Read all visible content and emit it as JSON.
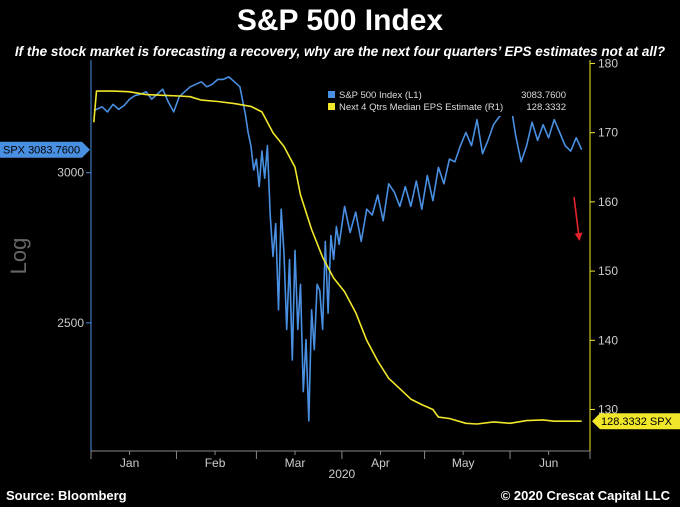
{
  "header": {
    "title": "S&P 500 Index",
    "subtitle": "If the stock market is forecasting a recovery, why are the next four quarters’ EPS estimates not at all?"
  },
  "footer": {
    "source": "Source: Bloomberg",
    "copyright": "© 2020 Crescat Capital LLC"
  },
  "colors": {
    "background": "#000000",
    "spx": "#4a90e2",
    "eps": "#f0e62a",
    "arrow": "#e3242b",
    "axis": "#888888"
  },
  "chart_data": {
    "type": "line",
    "xlabel": "2020",
    "x_ticks": [
      "Jan",
      "Feb",
      "Mar",
      "Apr",
      "May",
      "Jun"
    ],
    "x_tick_days": [
      14,
      45,
      74,
      105,
      135,
      166
    ],
    "x_range_days": [
      0,
      181
    ],
    "left_axis": {
      "label": "Log",
      "scale": "log",
      "ticks": [
        2500,
        3000
      ],
      "range": [
        2140,
        3440
      ],
      "last_value_badge": "SPX 3083.7600"
    },
    "right_axis": {
      "ticks": [
        130,
        140,
        150,
        160,
        170,
        180
      ],
      "range": [
        124,
        180.5
      ],
      "last_value_badge": "128.3332 SPX"
    },
    "legend": {
      "placement": "top-right",
      "entries": [
        {
          "label": "S&P 500 Index (L1)",
          "value": "3083.7600"
        },
        {
          "label": "Next 4 Qtrs Median EPS Estimate (R1)",
          "value": "128.3332"
        }
      ]
    },
    "series": [
      {
        "name": "S&P 500 Index (L1)",
        "axis": "left",
        "x_days": [
          1,
          4,
          6,
          8,
          10,
          12,
          14,
          16,
          18,
          20,
          22,
          24,
          26,
          28,
          30,
          32,
          34,
          36,
          38,
          40,
          42,
          44,
          46,
          48,
          50,
          52,
          54,
          56,
          57,
          58,
          59,
          60,
          61,
          62,
          63,
          64,
          65,
          66,
          67,
          68,
          69,
          70,
          71,
          72,
          73,
          74,
          75,
          76,
          77,
          78,
          79,
          80,
          81,
          82,
          83,
          84,
          85,
          86,
          87,
          88,
          89,
          90,
          92,
          94,
          96,
          98,
          100,
          102,
          104,
          106,
          108,
          110,
          112,
          114,
          116,
          118,
          120,
          122,
          124,
          126,
          128,
          130,
          132,
          134,
          136,
          138,
          140,
          142,
          144,
          146,
          148,
          150,
          152,
          154,
          156,
          158,
          160,
          162,
          164,
          166,
          168,
          170,
          172,
          174,
          176,
          178
        ],
        "y": [
          3235,
          3250,
          3230,
          3260,
          3240,
          3255,
          3280,
          3295,
          3300,
          3310,
          3280,
          3300,
          3320,
          3270,
          3230,
          3290,
          3310,
          3330,
          3340,
          3350,
          3330,
          3340,
          3360,
          3360,
          3370,
          3350,
          3330,
          3220,
          3150,
          3100,
          3010,
          3050,
          2950,
          3080,
          2980,
          3100,
          2850,
          2710,
          2820,
          2540,
          2870,
          2720,
          2480,
          2700,
          2390,
          2730,
          2480,
          2620,
          2300,
          2450,
          2220,
          2540,
          2420,
          2620,
          2600,
          2480,
          2760,
          2530,
          2780,
          2700,
          2810,
          2750,
          2880,
          2790,
          2860,
          2760,
          2870,
          2850,
          2920,
          2830,
          2960,
          2930,
          2880,
          2950,
          2880,
          2970,
          2870,
          2990,
          2900,
          3020,
          2960,
          3050,
          3040,
          3100,
          3150,
          3100,
          3200,
          3070,
          3120,
          3180,
          3210,
          3230,
          3280,
          3140,
          3040,
          3100,
          3190,
          3120,
          3180,
          3130,
          3200,
          3150,
          3100,
          3080,
          3130,
          3085
        ]
      },
      {
        "name": "Next 4 Qtrs Median EPS Estimate (R1)",
        "axis": "right",
        "x_days": [
          1,
          2,
          8,
          14,
          20,
          26,
          32,
          36,
          40,
          46,
          52,
          58,
          62,
          66,
          70,
          74,
          76,
          80,
          84,
          88,
          92,
          96,
          100,
          104,
          108,
          112,
          116,
          120,
          124,
          126,
          130,
          136,
          140,
          146,
          152,
          158,
          164,
          168,
          172,
          176,
          178
        ],
        "y": [
          171.5,
          176,
          176,
          175.9,
          175.5,
          175.4,
          175.3,
          175.2,
          174.7,
          174.5,
          174.2,
          173.8,
          173,
          170,
          168,
          165,
          161,
          156,
          152,
          149,
          147,
          144,
          140,
          137,
          134.5,
          133,
          131.5,
          130.7,
          130,
          128.9,
          128.7,
          128,
          127.9,
          128.2,
          128,
          128.4,
          128.5,
          128.3,
          128.3,
          128.3,
          128.3
        ]
      }
    ],
    "annotation": "red-down-arrow"
  }
}
